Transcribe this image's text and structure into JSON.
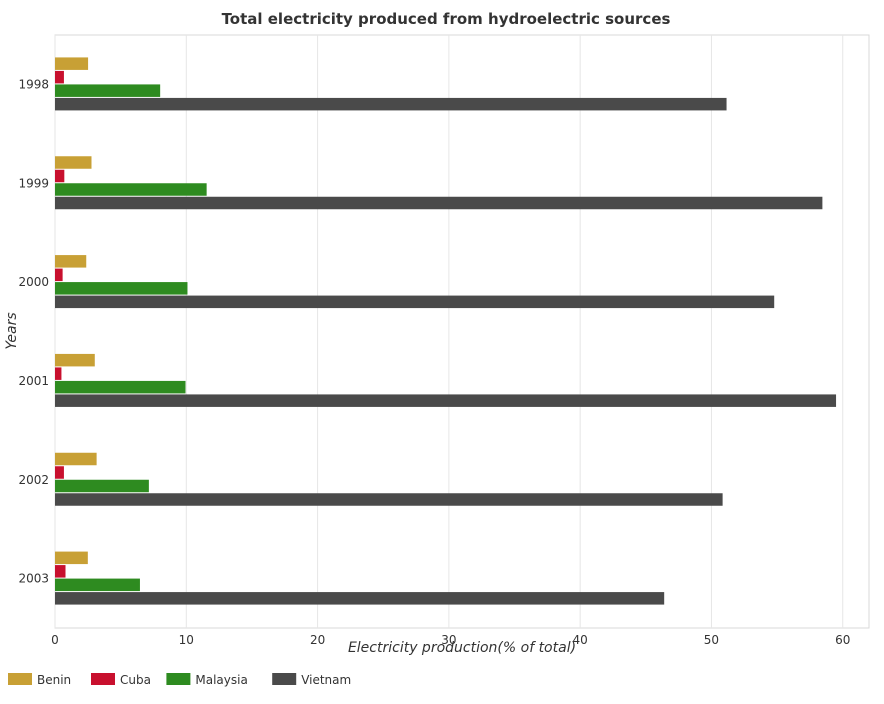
{
  "chart_data": {
    "type": "bar",
    "orientation": "horizontal",
    "title": "Total electricity produced from hydroelectric sources",
    "xlabel": "Electricity production(% of total)",
    "ylabel": "Years",
    "categories": [
      "1998",
      "1999",
      "2000",
      "2001",
      "2002",
      "2003"
    ],
    "xlim": [
      0,
      62
    ],
    "xticks": [
      0,
      10,
      20,
      30,
      40,
      50,
      60
    ],
    "grid": true,
    "legend_position": "bottom-left",
    "series": [
      {
        "name": "Benin",
        "color": "#c8a035",
        "values": [
          2.52,
          2.78,
          2.38,
          3.03,
          3.17,
          2.5
        ]
      },
      {
        "name": "Cuba",
        "color": "#c8102e",
        "values": [
          0.68,
          0.71,
          0.58,
          0.49,
          0.68,
          0.8
        ]
      },
      {
        "name": "Malaysia",
        "color": "#2e8b20",
        "values": [
          8.01,
          11.55,
          10.09,
          9.94,
          7.15,
          6.47
        ]
      },
      {
        "name": "Vietnam",
        "color": "#4a4a4a",
        "values": [
          51.15,
          58.45,
          54.78,
          59.49,
          50.85,
          46.4
        ]
      }
    ]
  }
}
